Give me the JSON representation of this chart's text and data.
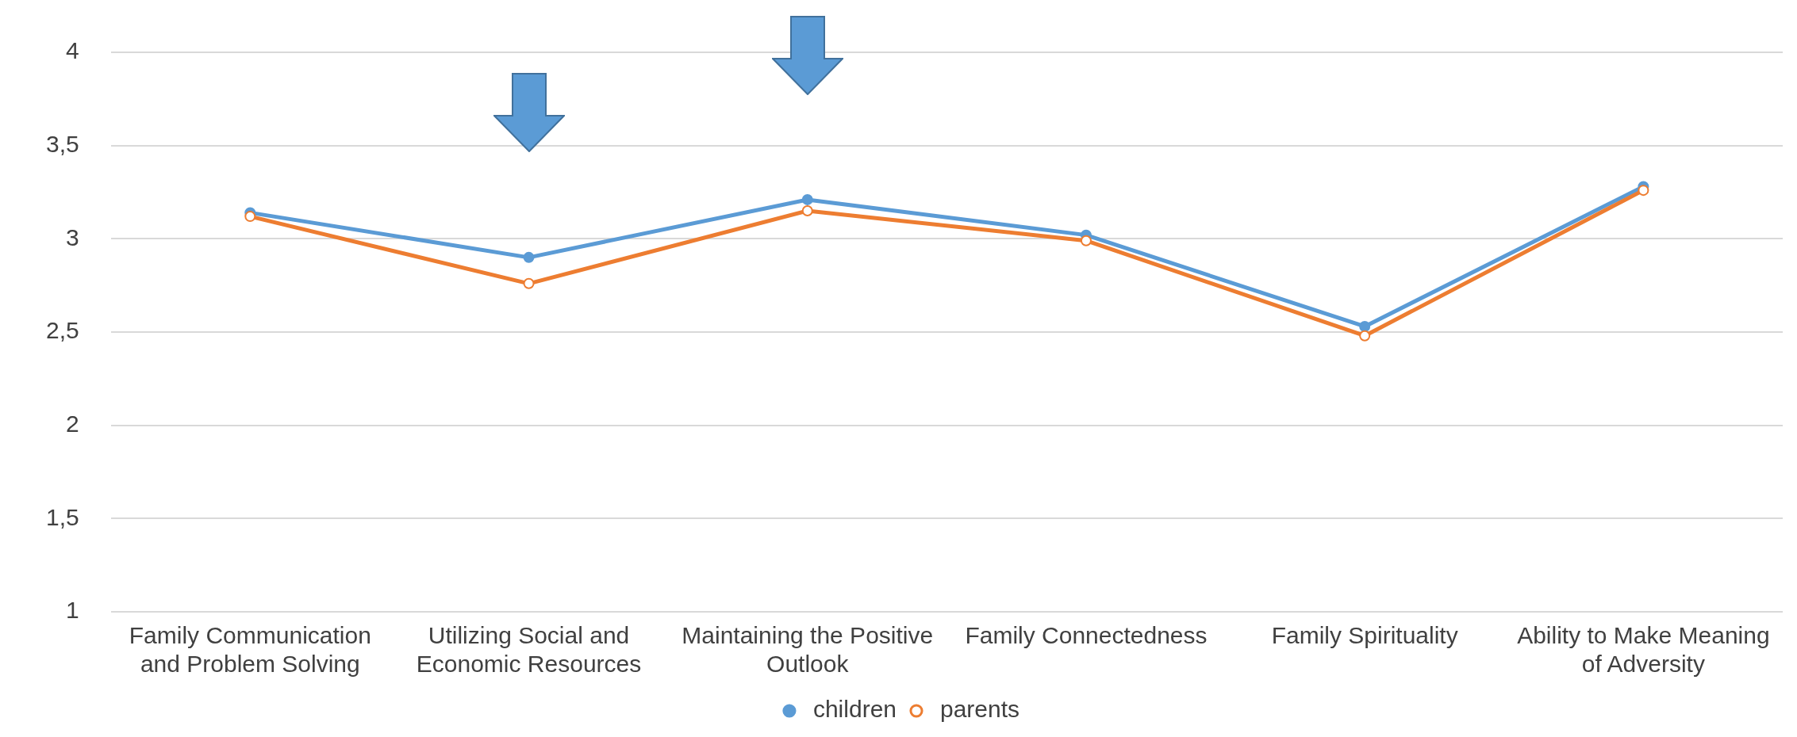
{
  "chart_data": {
    "type": "line",
    "categories": [
      "Family Communication and Problem Solving",
      "Utilizing Social and Economic Resources",
      "Maintaining the Positive Outlook",
      "Family Connectedness",
      "Family Spirituality",
      "Ability to Make Meaning of Adversity"
    ],
    "series": [
      {
        "name": "children",
        "color": "#5b9bd5",
        "values": [
          3.14,
          2.9,
          3.21,
          3.02,
          2.53,
          3.28
        ]
      },
      {
        "name": "parents",
        "color": "#ed7d31",
        "values": [
          3.12,
          2.76,
          3.15,
          2.99,
          2.48,
          3.26
        ]
      }
    ],
    "ylim": [
      1,
      4
    ],
    "yticks": [
      1,
      {
        "value": 1.5,
        "label": "1,5"
      },
      2,
      {
        "value": 2.5,
        "label": "2,5"
      },
      3,
      {
        "value": 3.5,
        "label": "3,5"
      },
      4
    ],
    "grid": "y",
    "legend": "bottom",
    "marker": "circle",
    "line_style": "solid"
  }
}
